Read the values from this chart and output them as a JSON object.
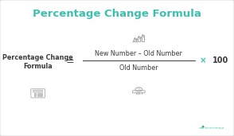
{
  "title": "Percentage Change Formula",
  "title_color": "#3dbfb0",
  "title_fontsize": 9.5,
  "bg_color": "#f0f0f0",
  "inner_bg": "#ffffff",
  "label_text": "Percentage Change\nFormula",
  "label_fontsize": 5.8,
  "equals_sign": "=",
  "numerator": "New Number – Old Number",
  "denominator": "Old Number",
  "times_sign": "×",
  "hundred": "100",
  "formula_color": "#3a3a3a",
  "formula_fontsize": 5.8,
  "line_color": "#555555",
  "times_color": "#3dbfb0",
  "watermark": "wallstreetmojo",
  "watermark_color": "#3dbfb0",
  "icon_color": "#aaaaaa",
  "icon_edge": "#999999"
}
